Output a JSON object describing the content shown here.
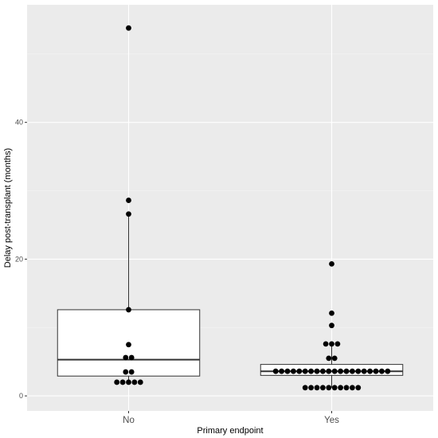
{
  "chart_data": {
    "type": "boxplot",
    "xlabel": "Primary endpoint",
    "ylabel": "Delay post-transplant (months)",
    "categories": [
      "No",
      "Yes"
    ],
    "ylim": [
      -2.2,
      57.2
    ],
    "yticks": [
      0,
      20,
      40
    ],
    "grid": true,
    "legend": "none",
    "boxes": [
      {
        "category": "No",
        "whisker_low": 2.0,
        "q1": 2.9,
        "median": 5.3,
        "q3": 12.6,
        "whisker_high": 26.6
      },
      {
        "category": "Yes",
        "whisker_low": 1.2,
        "q1": 3.0,
        "median": 3.6,
        "q3": 4.6,
        "whisker_high": 7.6
      }
    ],
    "points": [
      {
        "category": "No",
        "values": [
          2.0,
          2.0,
          2.0,
          2.0,
          2.0,
          3.5,
          3.5,
          5.6,
          5.6,
          7.5,
          12.6,
          26.6,
          28.6,
          53.8
        ]
      },
      {
        "category": "Yes",
        "values": [
          1.2,
          1.2,
          1.2,
          1.2,
          1.2,
          1.2,
          1.2,
          1.2,
          1.2,
          1.2,
          3.6,
          3.6,
          3.6,
          3.6,
          3.6,
          3.6,
          3.6,
          3.6,
          3.6,
          3.6,
          3.6,
          3.6,
          3.6,
          3.6,
          3.6,
          3.6,
          3.6,
          3.6,
          3.6,
          3.6,
          5.5,
          5.5,
          7.6,
          7.6,
          7.6,
          10.3,
          12.1,
          19.3
        ]
      }
    ],
    "colors": {
      "panel_bg": "#ebebeb",
      "grid_major": "#ffffff",
      "grid_minor": "#f5f5f5",
      "box_fill": "#ffffff",
      "box_stroke": "#333333",
      "point": "#000000"
    }
  }
}
